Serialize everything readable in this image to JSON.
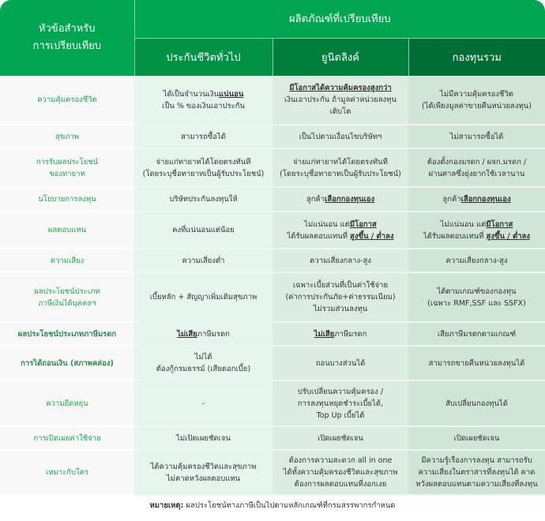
{
  "header": {
    "topic": [
      "หัวข้อสำหรับ",
      "การเปรียบเทียบ"
    ],
    "group": "ผลิตภัณฑ์ที่เปรียบเทียบ",
    "products": [
      "ประกันชีวิตทั่วไป",
      "ยูนิตลิงค์",
      "กองทุนรวม"
    ]
  },
  "colors": {
    "header": "#00a651",
    "label_text": "#1ea64f"
  },
  "rows": [
    {
      "label": [
        "ความคุ้มครองชีวิต"
      ],
      "cells": [
        [
          [
            {
              "t": "ได้เป็นจำนวนเงิน"
            },
            {
              "t": "แน่นอน",
              "u": true
            }
          ],
          [
            {
              "t": "เป็น % ของเงินเอาประกัน"
            }
          ]
        ],
        [
          [
            {
              "t": "มีโอกาสได้ความคุ้มครองสูงกว่า",
              "u": true
            }
          ],
          [
            {
              "t": "เงินเอาประกัน ถ้ามูลค่าหน่วยลงทุน"
            }
          ],
          [
            {
              "t": "เติบโต"
            }
          ]
        ],
        [
          [
            {
              "t": "ไม่มีความคุ้มครองชีวิต"
            }
          ],
          [
            {
              "t": "(ได้เพียงมูลค่าขายคืนหน่วยลงทุน)"
            }
          ]
        ]
      ]
    },
    {
      "label": [
        "สุขภาพ"
      ],
      "cells": [
        [
          [
            {
              "t": "สามารถซื้อได้"
            }
          ]
        ],
        [
          [
            {
              "t": "เป็นไปตามเงื่อนไขบริษัทฯ"
            }
          ]
        ],
        [
          [
            {
              "t": "ไม่สามารถซื้อได้"
            }
          ]
        ]
      ]
    },
    {
      "label": [
        "การรับผลประโยชน์",
        "ของทายาท"
      ],
      "cells": [
        [
          [
            {
              "t": "จ่ายแก่ทายาทได้โดยตรงทันที"
            }
          ],
          [
            {
              "t": "(โดยระบุชื่อทายาทเป็นผู้รับประโยชน์)"
            }
          ]
        ],
        [
          [
            {
              "t": "จ่ายแก่ทายาทได้โดยตรงทันที"
            }
          ],
          [
            {
              "t": "(โดยระบุชื่อทายาทเป็นผู้รับประโยชน์)"
            }
          ]
        ],
        [
          [
            {
              "t": "ต้องตั้งกองมรดก / ผจก.มรดก /"
            }
          ],
          [
            {
              "t": "ผ่านศาลซึ่งยุ่งยากใช้เวลานาน"
            }
          ]
        ]
      ]
    },
    {
      "label": [
        "นโยบายการลงทุน"
      ],
      "cells": [
        [
          [
            {
              "t": "บริษัทประกันลงทุนให้"
            }
          ]
        ],
        [
          [
            {
              "t": "ลูกค้า"
            },
            {
              "t": "เลือกกองทุนเอง",
              "u": true
            }
          ]
        ],
        [
          [
            {
              "t": "ลูกค้า"
            },
            {
              "t": "เลือกกองทุนเอง",
              "u": true
            }
          ]
        ]
      ]
    },
    {
      "label": [
        "ผลตอบแทน"
      ],
      "cells": [
        [
          [
            {
              "t": "คงที่แน่นอนแต่น้อย"
            }
          ]
        ],
        [
          [
            {
              "t": "ไม่แน่นอน แต่"
            },
            {
              "t": "มีโอกาส",
              "u": true
            }
          ],
          [
            {
              "t": "ได้รับผลตอบแทนที่ "
            },
            {
              "t": "สูงขึ้น / ต่ำลง",
              "u": true
            }
          ]
        ],
        [
          [
            {
              "t": "ไม่แน่นอน แต่"
            },
            {
              "t": "มีโอกาส",
              "u": true
            }
          ],
          [
            {
              "t": "ได้รับผลตอบแทนที่ "
            },
            {
              "t": "สูงขึ้น / ต่ำลง",
              "u": true
            }
          ]
        ]
      ]
    },
    {
      "label": [
        "ความเสี่ยง"
      ],
      "cells": [
        [
          [
            {
              "t": "ความเสี่ยงต่ำ"
            }
          ]
        ],
        [
          [
            {
              "t": "ความเสี่ยงกลาง-สูง"
            }
          ]
        ],
        [
          [
            {
              "t": "ความเสี่ยงกลาง-สูง"
            }
          ]
        ]
      ]
    },
    {
      "label": [
        "ผลประโยชน์ประเภท",
        "ภาษีเงินได้บุคคลฯ"
      ],
      "cells": [
        [
          [
            {
              "t": "เบี้ยหลัก + สัญญาเพิ่มเติมสุขภาพ"
            }
          ]
        ],
        [
          [
            {
              "t": "เฉพาะเบี้ยส่วนที่เป็นค่าใช้จ่าย"
            }
          ],
          [
            {
              "t": "(ค่าการประกันภัย+ค่าธรรมเนียม)"
            }
          ],
          [
            {
              "t": "ไม่รวมส่วนลงทุน"
            }
          ]
        ],
        [
          [
            {
              "t": "ได้ตามเกณฑ์ของกองทุน"
            }
          ],
          [
            {
              "t": "(เฉพาะ RMF,SSF และ SSFX)"
            }
          ]
        ]
      ]
    },
    {
      "label": [
        "ผลประโยชน์ประเภทภาษีมรดก"
      ],
      "cells": [
        [
          [
            {
              "t": "ไม่เสีย",
              "u": true
            },
            {
              "t": "ภาษีมรดก"
            }
          ]
        ],
        [
          [
            {
              "t": "ไม่เสีย",
              "u": true
            },
            {
              "t": "ภาษีมรดก"
            }
          ]
        ],
        [
          [
            {
              "t": "เสียภาษีมรดกตามเกณฑ์"
            }
          ]
        ]
      ]
    },
    {
      "label": [
        "การได้ถอนเงิน (สภาพคล่อง)"
      ],
      "cells": [
        [
          [
            {
              "t": "ไม่ได้"
            }
          ],
          [
            {
              "t": "ต้องกู้กรมธรรม์ (เสียดอกเบี้ย)"
            }
          ]
        ],
        [
          [
            {
              "t": "ถอนบางส่วนได้"
            }
          ]
        ],
        [
          [
            {
              "t": "สามารถขายคืนหน่วยลงทุนได้"
            }
          ]
        ]
      ]
    },
    {
      "label": [
        "ความยืดหยุ่น"
      ],
      "cells": [
        [
          [
            {
              "t": "-"
            }
          ]
        ],
        [
          [
            {
              "t": "ปรับเปลี่ยนความคุ้มครอง /"
            }
          ],
          [
            {
              "t": "การลงทุนหยุดชำระเบี้ยได้,"
            }
          ],
          [
            {
              "t": "Top Up เบี้ยได้"
            }
          ]
        ],
        [
          [
            {
              "t": "สับเปลี่ยนกองทุนได้"
            }
          ]
        ]
      ]
    },
    {
      "label": [
        "การเปิดเผยค่าใช้จ่าย"
      ],
      "cells": [
        [
          [
            {
              "t": "ไม่เปิดเผยชัดเจน"
            }
          ]
        ],
        [
          [
            {
              "t": "เปิดเผยชัดเจน"
            }
          ]
        ],
        [
          [
            {
              "t": "เปิดเผยชัดเจน"
            }
          ]
        ]
      ]
    },
    {
      "label": [
        "เหมาะกับใคร"
      ],
      "cells": [
        [
          [
            {
              "t": "ได้ความคุ้มครองชีวิตและสุขภาพ"
            }
          ],
          [
            {
              "t": "ไม่คาดหวังผลตอบแทน"
            }
          ]
        ],
        [
          [
            {
              "t": "ต้องการความสะดวก all in one"
            }
          ],
          [
            {
              "t": "ได้ทั้งความคุ้มครองชีวิตและสุขภาพ"
            }
          ],
          [
            {
              "t": "ต้องการผลตอบแทนที่งอกเงย"
            }
          ]
        ],
        [
          [
            {
              "t": "มีความรู้เรื่องการลงทุน  สามารถรับ"
            }
          ],
          [
            {
              "t": "ความเสี่ยงในตราสารที่ลงทุนได้ คาด"
            }
          ],
          [
            {
              "t": "หวังผลตอบแทนตามความเสี่ยงที่ลงทุน"
            }
          ]
        ]
      ]
    }
  ],
  "note": {
    "label": "หมายเหตุ:",
    "text": " ผลประโยชน์ทางภาษีเป็นไปตามหลักเกณฑ์ที่กรมสรรพากรกำหนด"
  }
}
